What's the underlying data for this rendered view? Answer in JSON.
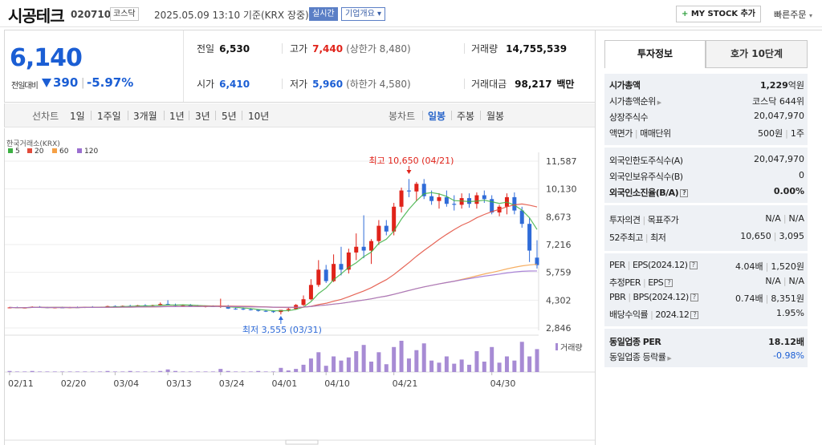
{
  "header": {
    "name": "시공테크",
    "code": "020710",
    "market": "코스닥",
    "date": "2025.05.09 13:10  기준(KRX 장중)",
    "realtime": "실시간",
    "company_overview": "기업개요 ▾",
    "mystock": "MY STOCK 추가",
    "quick_order": "빠른주문"
  },
  "price": {
    "current": "6,140",
    "change_label": "전일대비",
    "change": "390",
    "change_pct": "-5.97%"
  },
  "quote": {
    "prev_label": "전일",
    "prev": "6,530",
    "high_label": "고가",
    "high": "7,440",
    "upper_limit": "(상한가 8,480)",
    "volume_label": "거래량",
    "volume": "14,755,539",
    "open_label": "시가",
    "open": "6,410",
    "low_label": "저가",
    "low": "5,960",
    "lower_limit": "(하한가 4,580)",
    "amount_label": "거래대금",
    "amount": "98,217",
    "amount_unit": "백만"
  },
  "periods": {
    "line_chart": "선차트",
    "items": [
      "1일",
      "1주일",
      "3개월",
      "1년",
      "3년",
      "5년",
      "10년"
    ],
    "candle_chart": "봉차트",
    "candle_items": [
      "일봉",
      "주봉",
      "월봉"
    ],
    "active_candle": "일봉"
  },
  "chart_data": {
    "type": "candlestick",
    "source": "한국거래소(KRX)",
    "ma_legend": [
      {
        "name": "5",
        "color": "#3cb043"
      },
      {
        "name": "20",
        "color": "#e24b3b"
      },
      {
        "name": "60",
        "color": "#f5a046"
      },
      {
        "name": "120",
        "color": "#9b6fd0"
      }
    ],
    "y_ticks": [
      "11,587",
      "10,130",
      "8,673",
      "7,216",
      "5,759",
      "4,302",
      "2,846"
    ],
    "x_ticks": [
      "02/11",
      "02/20",
      "03/04",
      "03/13",
      "03/24",
      "04/01",
      "04/10",
      "04/21",
      "04/30"
    ],
    "ylim": [
      2846,
      11587
    ],
    "high_annotation": "최고 10,650 (04/21)",
    "low_annotation": "최저 3,555 (03/31)",
    "volume_label": "거래량",
    "candles": [
      [
        3890,
        3950,
        3880,
        3920
      ],
      [
        3920,
        3960,
        3890,
        3900
      ],
      [
        3900,
        3930,
        3870,
        3910
      ],
      [
        3910,
        3980,
        3900,
        3960
      ],
      [
        3960,
        3990,
        3920,
        3930
      ],
      [
        3930,
        3950,
        3880,
        3890
      ],
      [
        3890,
        3940,
        3870,
        3920
      ],
      [
        3920,
        3960,
        3900,
        3910
      ],
      [
        3910,
        3950,
        3880,
        3930
      ],
      [
        3930,
        3970,
        3910,
        3920
      ],
      [
        3920,
        3960,
        3890,
        3950
      ],
      [
        3950,
        3990,
        3920,
        3930
      ],
      [
        3930,
        3960,
        3900,
        3940
      ],
      [
        3940,
        4010,
        3920,
        3990
      ],
      [
        3990,
        4030,
        3950,
        3970
      ],
      [
        3970,
        4020,
        3940,
        4000
      ],
      [
        4000,
        4060,
        3970,
        3990
      ],
      [
        3990,
        4050,
        3960,
        4030
      ],
      [
        4030,
        4090,
        4000,
        4010
      ],
      [
        4010,
        4060,
        3980,
        4040
      ],
      [
        4040,
        4180,
        4010,
        4100
      ],
      [
        4100,
        4300,
        4050,
        4060
      ],
      [
        4060,
        4120,
        4000,
        4020
      ],
      [
        4020,
        4080,
        3980,
        4050
      ],
      [
        4050,
        4100,
        3990,
        4000
      ],
      [
        4000,
        4050,
        3950,
        3980
      ],
      [
        3980,
        4020,
        3920,
        3990
      ],
      [
        3990,
        4030,
        3940,
        3950
      ],
      [
        3950,
        4380,
        3900,
        3990
      ],
      [
        3990,
        4050,
        3840,
        3860
      ],
      [
        3860,
        3900,
        3800,
        3850
      ],
      [
        3850,
        3920,
        3780,
        3820
      ],
      [
        3820,
        3880,
        3760,
        3790
      ],
      [
        3790,
        3830,
        3700,
        3740
      ],
      [
        3740,
        3780,
        3680,
        3720
      ],
      [
        3720,
        3760,
        3640,
        3680
      ],
      [
        3680,
        3720,
        3555,
        3790
      ],
      [
        3790,
        3920,
        3700,
        3840
      ],
      [
        3840,
        4100,
        3820,
        4050
      ],
      [
        4050,
        4550,
        4000,
        4350
      ],
      [
        4350,
        5400,
        4300,
        5100
      ],
      [
        5100,
        6400,
        5000,
        5900
      ],
      [
        5900,
        6150,
        5200,
        5300
      ],
      [
        5300,
        6700,
        5250,
        6200
      ],
      [
        6200,
        7100,
        5600,
        5900
      ],
      [
        5900,
        7000,
        5700,
        6800
      ],
      [
        6800,
        7800,
        6400,
        7100
      ],
      [
        7100,
        8750,
        6500,
        6900
      ],
      [
        6900,
        7500,
        6200,
        7400
      ],
      [
        7400,
        8500,
        7200,
        8200
      ],
      [
        8200,
        8500,
        7700,
        7900
      ],
      [
        7900,
        9400,
        7700,
        9200
      ],
      [
        9200,
        10200,
        8900,
        10050
      ],
      [
        10050,
        10650,
        9700,
        10000
      ],
      [
        10000,
        10500,
        9500,
        10400
      ],
      [
        10400,
        10650,
        9600,
        9750
      ],
      [
        9750,
        10050,
        9300,
        9500
      ],
      [
        9500,
        9900,
        9100,
        9700
      ],
      [
        9700,
        10050,
        9200,
        9350
      ],
      [
        9350,
        9800,
        9000,
        9300
      ],
      [
        9300,
        9900,
        9100,
        9650
      ],
      [
        9650,
        9900,
        9150,
        9350
      ],
      [
        9350,
        9950,
        9100,
        9800
      ],
      [
        9800,
        10050,
        9400,
        9600
      ],
      [
        9600,
        9800,
        8800,
        8900
      ],
      [
        8900,
        9300,
        8700,
        9200
      ],
      [
        9200,
        9900,
        8800,
        9700
      ],
      [
        9700,
        9950,
        8800,
        9000
      ],
      [
        9000,
        9200,
        8100,
        8300
      ],
      [
        8300,
        8600,
        6300,
        6900
      ],
      [
        6530,
        7440,
        5960,
        6140
      ]
    ],
    "volumes": [
      2,
      1,
      1,
      2,
      1,
      1,
      1,
      1,
      1,
      1,
      1,
      1,
      1,
      2,
      1,
      1,
      2,
      1,
      1,
      1,
      2,
      5,
      2,
      1,
      1,
      1,
      1,
      1,
      6,
      2,
      1,
      1,
      1,
      2,
      1,
      1,
      8,
      3,
      6,
      14,
      26,
      38,
      12,
      30,
      22,
      28,
      40,
      52,
      20,
      38,
      15,
      48,
      60,
      26,
      42,
      55,
      22,
      18,
      30,
      16,
      24,
      14,
      40,
      20,
      48,
      18,
      30,
      22,
      58,
      30,
      44
    ]
  },
  "side": {
    "tab_active": "투자정보",
    "tab_inactive": "호가 10단계",
    "market_cap_label": "시가총액",
    "market_cap": "1,229",
    "market_cap_unit": "억원",
    "rank_label": "시가총액순위",
    "rank": "코스닥 644위",
    "shares_label": "상장주식수",
    "shares": "20,047,970",
    "par_label": "액면가",
    "unit_label": "매매단위",
    "par": "500원",
    "unit": "1주",
    "foreign_limit_label": "외국인한도주식수(A)",
    "foreign_limit": "20,047,970",
    "foreign_hold_label": "외국인보유주식수(B)",
    "foreign_hold": "0",
    "foreign_ratio_label": "외국인소진율(B/A)",
    "foreign_ratio": "0.00%",
    "opinion_label": "투자의견",
    "target_label": "목표주가",
    "opinion": "N/A",
    "target": "N/A",
    "wk52_high_label": "52주최고",
    "wk52_low_label": "최저",
    "wk52_high": "10,650",
    "wk52_low": "3,095",
    "per_label": "PER",
    "eps_label": "EPS(2024.12)",
    "per": "4.04배",
    "eps": "1,520원",
    "est_per_label": "추정PER",
    "est_eps_label": "EPS",
    "est_per": "N/A",
    "est_eps": "N/A",
    "pbr_label": "PBR",
    "bps_label": "BPS(2024.12)",
    "pbr": "0.74배",
    "bps": "8,351원",
    "div_label": "배당수익률",
    "div_date": "2024.12",
    "div": "1.95%",
    "sector_per_label": "동일업종 PER",
    "sector_per": "18.12배",
    "sector_rate_label": "동일업종 등락률",
    "sector_rate": "-0.98%"
  }
}
